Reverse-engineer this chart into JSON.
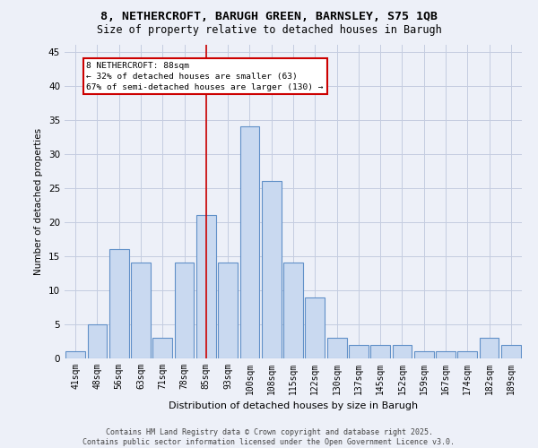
{
  "title_line1": "8, NETHERCROFT, BARUGH GREEN, BARNSLEY, S75 1QB",
  "title_line2": "Size of property relative to detached houses in Barugh",
  "xlabel": "Distribution of detached houses by size in Barugh",
  "ylabel": "Number of detached properties",
  "categories": [
    "41sqm",
    "48sqm",
    "56sqm",
    "63sqm",
    "71sqm",
    "78sqm",
    "85sqm",
    "93sqm",
    "100sqm",
    "108sqm",
    "115sqm",
    "122sqm",
    "130sqm",
    "137sqm",
    "145sqm",
    "152sqm",
    "159sqm",
    "167sqm",
    "174sqm",
    "182sqm",
    "189sqm"
  ],
  "values": [
    1,
    5,
    16,
    14,
    3,
    14,
    21,
    14,
    34,
    26,
    14,
    9,
    3,
    2,
    2,
    2,
    1,
    1,
    1,
    3,
    2
  ],
  "bar_color": "#c9d9f0",
  "bar_edge_color": "#6090c8",
  "marker_line_index": 6.5,
  "marker_label_line1": "8 NETHERCROFT: 88sqm",
  "marker_smaller_pct": 32,
  "marker_smaller_count": 63,
  "marker_larger_pct": 67,
  "marker_larger_count": 130,
  "marker_color": "#cc0000",
  "ylim": [
    0,
    46
  ],
  "yticks": [
    0,
    5,
    10,
    15,
    20,
    25,
    30,
    35,
    40,
    45
  ],
  "grid_color": "#c4cce0",
  "background_color": "#edf0f8",
  "footer_line1": "Contains HM Land Registry data © Crown copyright and database right 2025.",
  "footer_line2": "Contains public sector information licensed under the Open Government Licence v3.0."
}
